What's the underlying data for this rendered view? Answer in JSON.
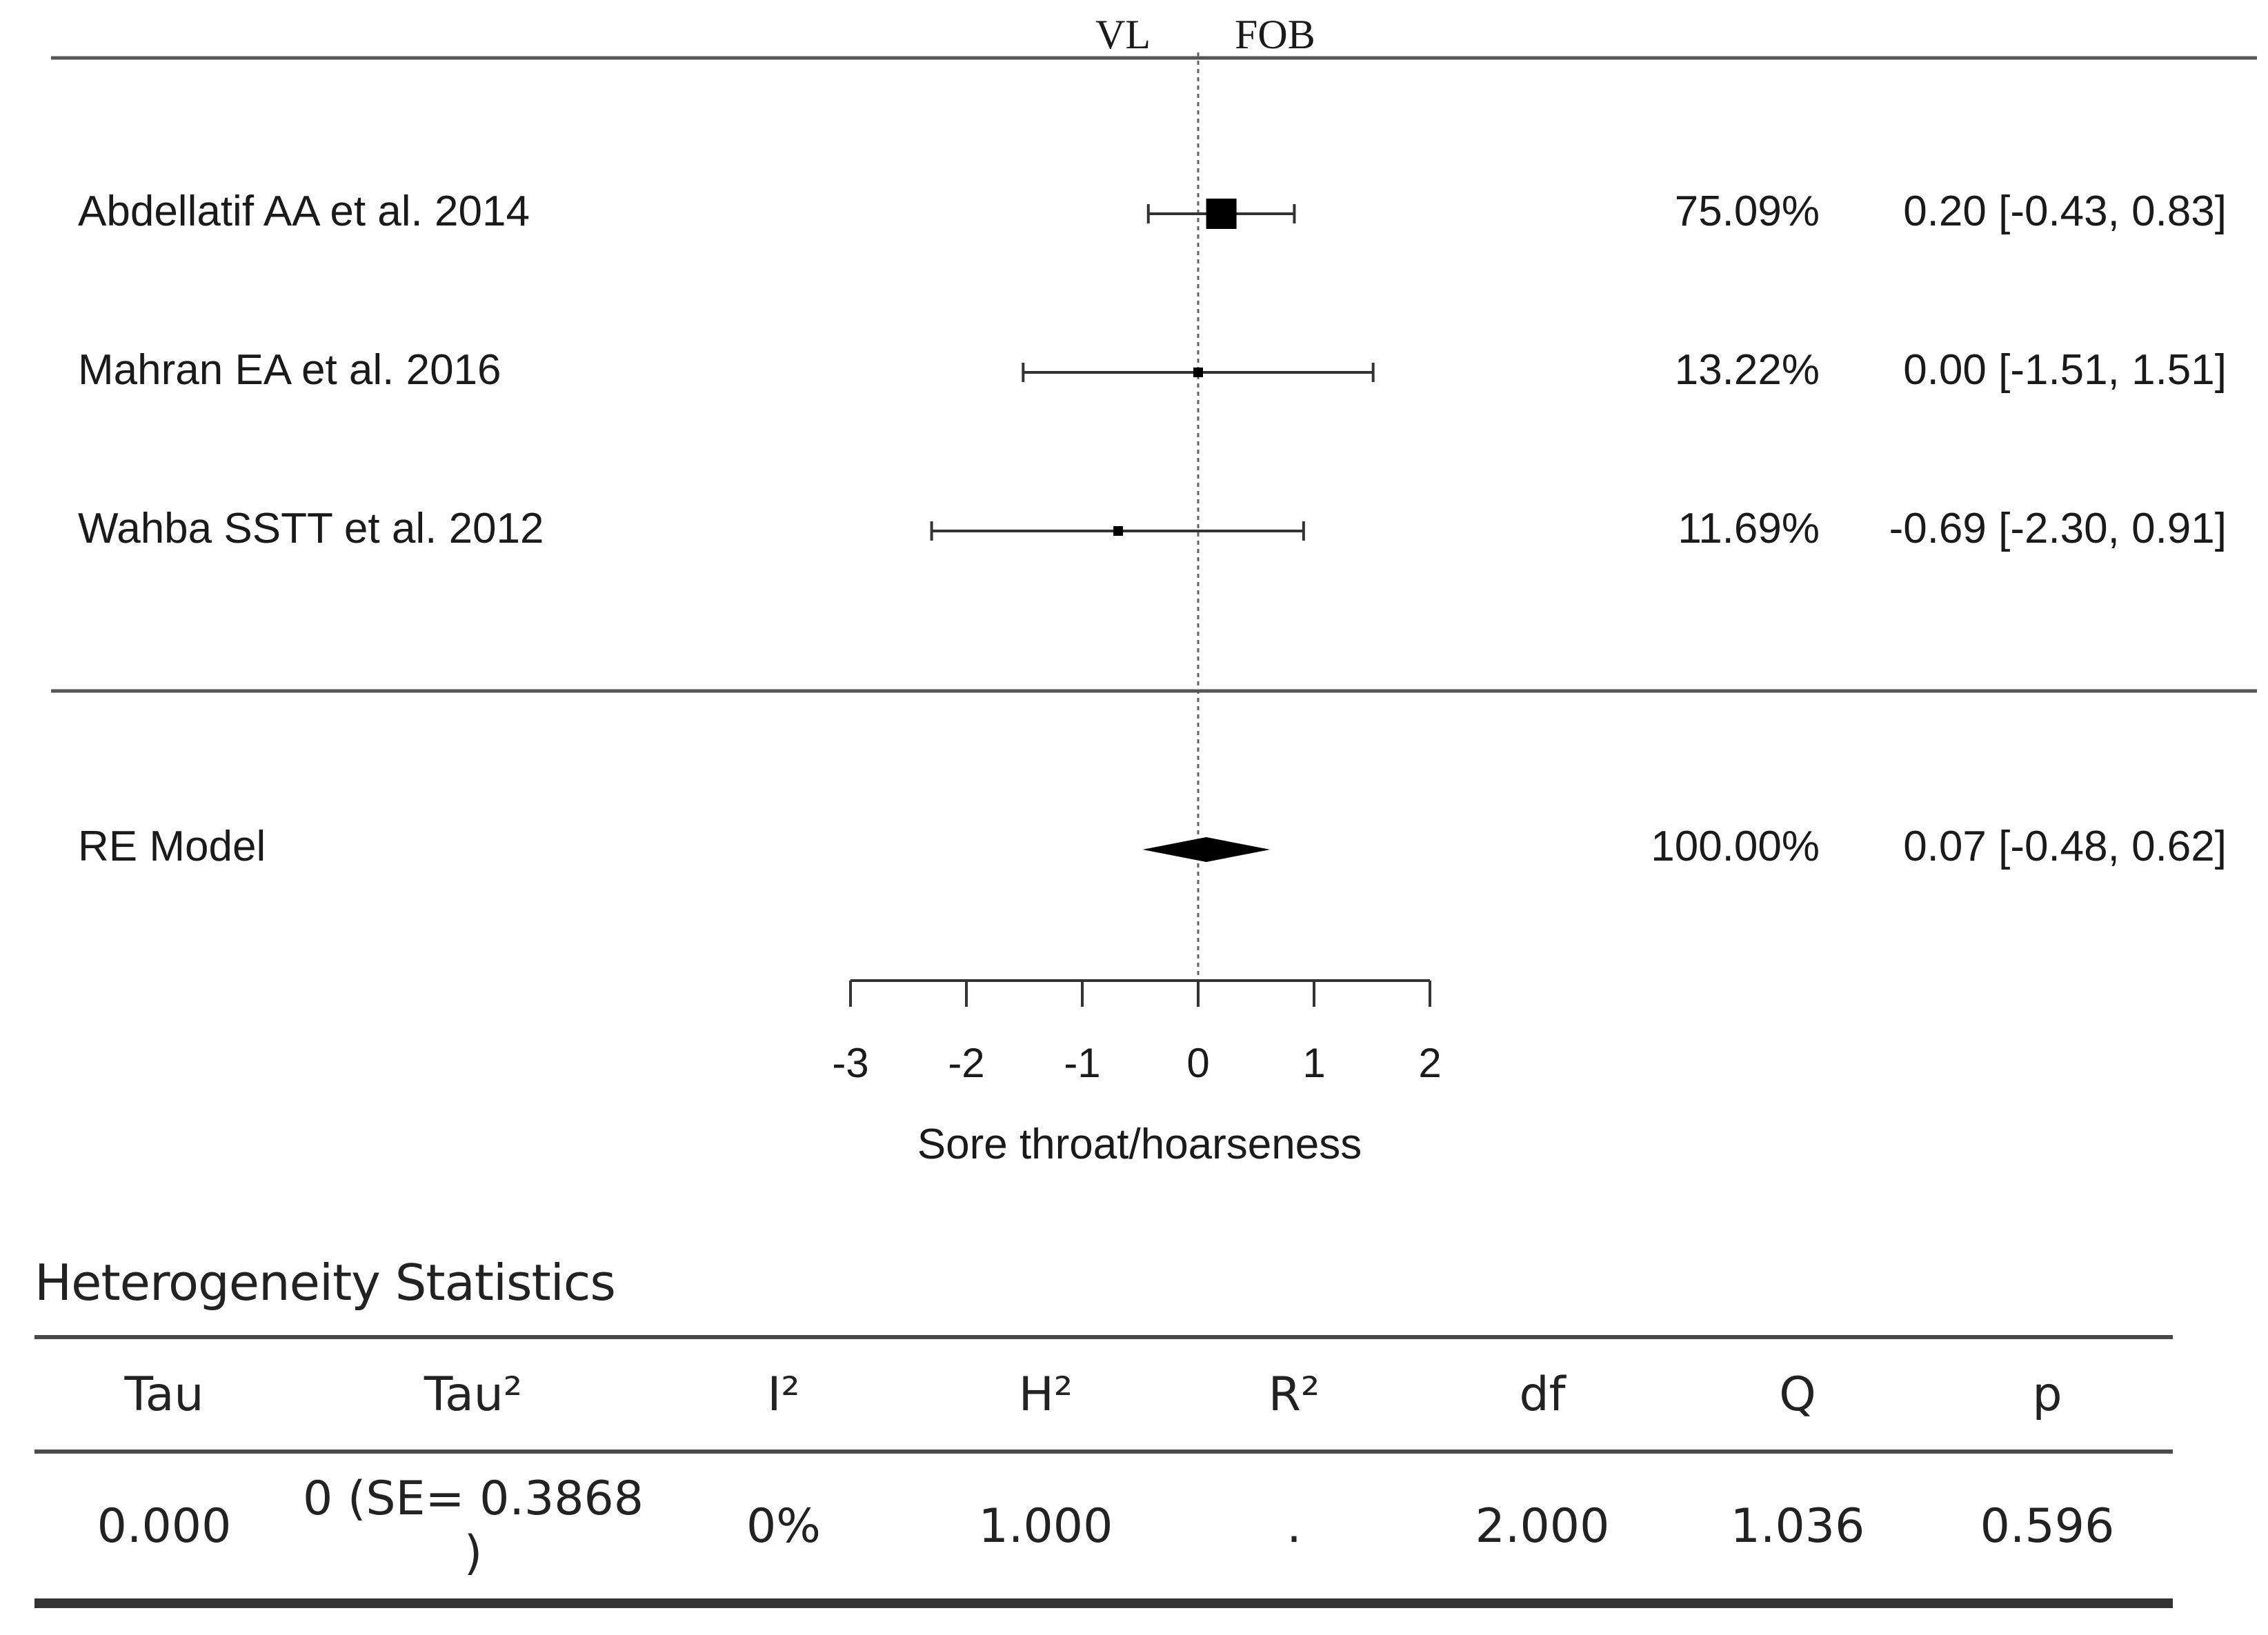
{
  "chart_data": {
    "type": "forest",
    "header": {
      "left_label": "VL",
      "right_label": "FOB"
    },
    "studies": [
      {
        "label": "Abdellatif AA et al. 2014",
        "weight": "75.09%",
        "estimate": 0.2,
        "ci_lower": -0.43,
        "ci_upper": 0.83,
        "ci_text": "0.20 [-0.43, 0.83]"
      },
      {
        "label": "Mahran EA et al. 2016",
        "weight": "13.22%",
        "estimate": 0.0,
        "ci_lower": -1.51,
        "ci_upper": 1.51,
        "ci_text": "0.00 [-1.51, 1.51]"
      },
      {
        "label": "Wahba SSTT et al. 2012",
        "weight": "11.69%",
        "estimate": -0.69,
        "ci_lower": -2.3,
        "ci_upper": 0.91,
        "ci_text": "-0.69 [-2.30, 0.91]"
      }
    ],
    "summary": {
      "label": "RE Model",
      "weight": "100.00%",
      "estimate": 0.07,
      "ci_lower": -0.48,
      "ci_upper": 0.62,
      "ci_text": "0.07 [-0.48, 0.62]"
    },
    "xaxis": {
      "label": "Sore throat/hoarseness",
      "ticks": [
        -3,
        -2,
        -1,
        0,
        1,
        2
      ],
      "tick_labels": [
        "-3",
        "-2",
        "-1",
        "0",
        "1",
        "2"
      ],
      "range": [
        -3,
        2
      ],
      "reference_line": 0
    }
  },
  "heterogeneity": {
    "title": "Heterogeneity Statistics",
    "headers": [
      "Tau",
      "Tau²",
      "I²",
      "H²",
      "R²",
      "df",
      "Q",
      "p"
    ],
    "values": [
      "0.000",
      "0 (SE= 0.3868 )",
      "0%",
      "1.000",
      ".",
      "2.000",
      "1.036",
      "0.596"
    ]
  }
}
